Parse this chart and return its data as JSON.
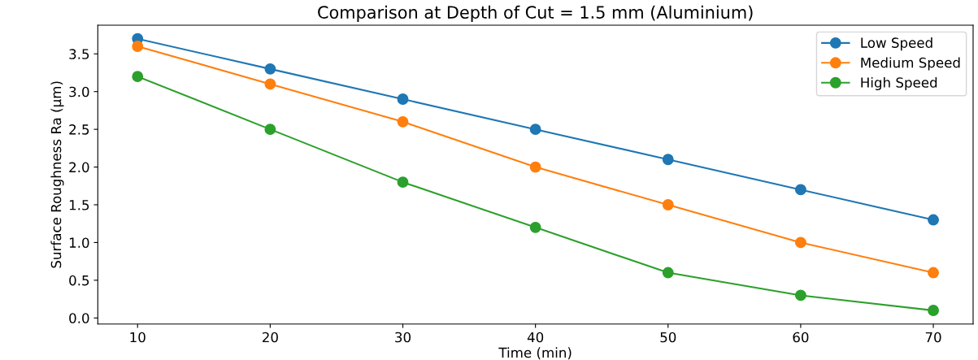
{
  "chart_data": {
    "type": "line",
    "title": "Comparison at Depth of Cut = 1.5 mm (Aluminium)",
    "xlabel": "Time (min)",
    "ylabel": "Surface Roughness Ra (µm)",
    "x": [
      10,
      20,
      30,
      40,
      50,
      60,
      70
    ],
    "series": [
      {
        "name": "Low Speed",
        "color": "#1f77b4",
        "values": [
          3.7,
          3.3,
          2.9,
          2.5,
          2.1,
          1.7,
          1.3
        ]
      },
      {
        "name": "Medium Speed",
        "color": "#ff7f0e",
        "values": [
          3.6,
          3.1,
          2.6,
          2.0,
          1.5,
          1.0,
          0.6
        ]
      },
      {
        "name": "High Speed",
        "color": "#2ca02c",
        "values": [
          3.2,
          2.5,
          1.8,
          1.2,
          0.6,
          0.3,
          0.1
        ]
      }
    ],
    "xlim": [
      7,
      73
    ],
    "ylim": [
      -0.08,
      3.88
    ],
    "xticks": [
      10,
      20,
      30,
      40,
      50,
      60,
      70
    ],
    "yticks": [
      {
        "value": 0,
        "label": "0.0"
      },
      {
        "value": 0.5,
        "label": "0.5"
      },
      {
        "value": 1,
        "label": "1.0"
      },
      {
        "value": 1.5,
        "label": "1.5"
      },
      {
        "value": 2,
        "label": "2.0"
      },
      {
        "value": 2.5,
        "label": "2.5"
      },
      {
        "value": 3,
        "label": "3.0"
      },
      {
        "value": 3.5,
        "label": "3.5"
      }
    ],
    "marker": "circle",
    "line_style": "solid",
    "legend": "top right",
    "grid": false
  }
}
